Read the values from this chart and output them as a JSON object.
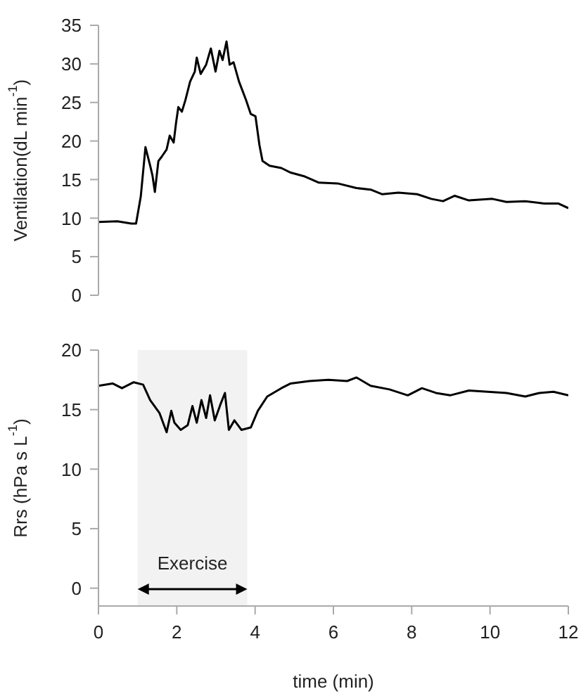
{
  "chart_data": [
    {
      "type": "line",
      "ylabel": "Ventilation(dL min$^{-1}$)",
      "xlim": [
        0,
        12
      ],
      "xticks": [
        0,
        2,
        4,
        6,
        8,
        10,
        12
      ],
      "ylim": [
        0,
        35
      ],
      "yticks": [
        0,
        5,
        10,
        15,
        20,
        25,
        30,
        35
      ],
      "tick_labels": "y",
      "marker": "none",
      "x": [
        0,
        0.48,
        0.84,
        0.96,
        1.08,
        1.2,
        1.32,
        1.38,
        1.44,
        1.53,
        1.62,
        1.74,
        1.82,
        1.92,
        1.98,
        2.04,
        2.13,
        2.22,
        2.34,
        2.46,
        2.51,
        2.61,
        2.75,
        2.87,
        2.99,
        3.09,
        3.17,
        3.27,
        3.35,
        3.45,
        3.59,
        3.77,
        3.89,
        4.01,
        4.11,
        4.19,
        4.37,
        4.67,
        4.91,
        5.27,
        5.63,
        6.11,
        6.59,
        6.95,
        7.25,
        7.66,
        8.14,
        8.5,
        8.8,
        9.1,
        9.46,
        10.06,
        10.42,
        10.9,
        11.38,
        11.74,
        12
      ],
      "series": [
        {
          "color": "#000000",
          "values": [
            9.5,
            9.6,
            9.3,
            9.3,
            12.8,
            19.2,
            16.8,
            15.5,
            13.4,
            17.4,
            18,
            18.9,
            20.7,
            19.8,
            22.3,
            24.4,
            23.8,
            25.3,
            27.7,
            29,
            30.8,
            28.7,
            29.9,
            32,
            29,
            31.7,
            30.5,
            32.9,
            29.9,
            30.2,
            27.7,
            25.3,
            23.5,
            23.2,
            19.5,
            17.4,
            16.8,
            16.5,
            15.9,
            15.4,
            14.6,
            14.5,
            13.9,
            13.7,
            13.1,
            13.3,
            13.1,
            12.5,
            12.2,
            12.9,
            12.3,
            12.5,
            12.1,
            12.2,
            11.9,
            11.9,
            11.3
          ]
        }
      ]
    },
    {
      "type": "line",
      "xlabel": "time (min)",
      "ylabel": "Rrs (hPa s L$^{-1}$)",
      "xlim": [
        0,
        12
      ],
      "xticks": [
        0,
        2,
        4,
        6,
        8,
        10,
        12
      ],
      "ylim": [
        -1.5,
        20
      ],
      "yticks": [
        0,
        5,
        10,
        15,
        20
      ],
      "marker": "none",
      "bands": [
        {
          "axis": "x",
          "from": 1,
          "to": 3.8,
          "label": "Exercise"
        }
      ],
      "x": [
        0,
        0.36,
        0.6,
        0.9,
        1.14,
        1.32,
        1.56,
        1.74,
        1.86,
        1.94,
        2.1,
        2.28,
        2.4,
        2.51,
        2.63,
        2.75,
        2.85,
        2.97,
        3.11,
        3.23,
        3.33,
        3.47,
        3.65,
        3.89,
        4.07,
        4.31,
        4.67,
        4.91,
        5.39,
        5.87,
        6.35,
        6.59,
        6.95,
        7.43,
        7.9,
        8.26,
        8.62,
        8.98,
        9.46,
        9.94,
        10.42,
        10.9,
        11.26,
        11.62,
        12
      ],
      "series": [
        {
          "color": "#000000",
          "values": [
            17,
            17.2,
            16.8,
            17.3,
            17.1,
            15.8,
            14.7,
            13.1,
            14.9,
            13.9,
            13.3,
            13.7,
            15.3,
            13.9,
            15.8,
            14.3,
            16.2,
            14.1,
            15.4,
            16.4,
            13.3,
            14.1,
            13.3,
            13.5,
            14.9,
            16.1,
            16.8,
            17.2,
            17.4,
            17.5,
            17.4,
            17.7,
            17,
            16.7,
            16.2,
            16.8,
            16.4,
            16.2,
            16.6,
            16.5,
            16.4,
            16.1,
            16.4,
            16.5,
            16.2
          ]
        }
      ]
    }
  ]
}
